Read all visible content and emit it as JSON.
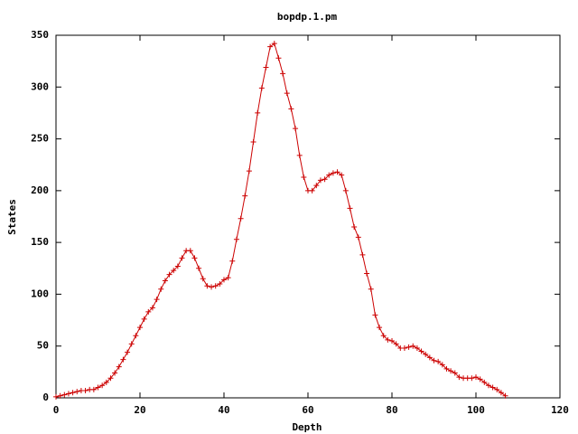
{
  "chart_data": {
    "type": "line",
    "title": "bopdp.1.pm",
    "x_label": "Depth",
    "y_label": "States",
    "x": [
      0,
      1,
      2,
      3,
      4,
      5,
      6,
      7,
      8,
      9,
      10,
      11,
      12,
      13,
      14,
      15,
      16,
      17,
      18,
      19,
      20,
      21,
      22,
      23,
      24,
      25,
      26,
      27,
      28,
      29,
      30,
      31,
      32,
      33,
      34,
      35,
      36,
      37,
      38,
      39,
      40,
      41,
      42,
      43,
      44,
      45,
      46,
      47,
      48,
      49,
      50,
      51,
      52,
      53,
      54,
      55,
      56,
      57,
      58,
      59,
      60,
      61,
      62,
      63,
      64,
      65,
      66,
      67,
      68,
      69,
      70,
      71,
      72,
      73,
      74,
      75,
      76,
      77,
      78,
      79,
      80,
      81,
      82,
      83,
      84,
      85,
      86,
      87,
      88,
      89,
      90,
      91,
      92,
      93,
      94,
      95,
      96,
      97,
      98,
      99,
      100,
      101,
      102,
      103,
      104,
      105,
      106,
      107
    ],
    "series": [
      {
        "color": "#cc0000",
        "values": [
          1,
          2,
          3,
          4,
          5,
          6,
          7,
          7,
          8,
          8,
          10,
          12,
          15,
          19,
          24,
          30,
          37,
          44,
          52,
          60,
          68,
          76,
          83,
          87,
          95,
          105,
          113,
          119,
          123,
          127,
          135,
          142,
          142,
          135,
          125,
          115,
          108,
          107,
          108,
          110,
          114,
          116,
          132,
          153,
          173,
          195,
          219,
          247,
          275,
          299,
          319,
          339,
          342,
          328,
          313,
          294,
          279,
          260,
          234,
          213,
          200,
          200,
          205,
          210,
          211,
          215,
          217,
          218,
          215,
          200,
          183,
          165,
          155,
          138,
          120,
          105,
          80,
          68,
          60,
          56,
          55,
          52,
          48,
          48,
          49,
          50,
          48,
          45,
          42,
          39,
          36,
          35,
          32,
          28,
          26,
          24,
          20,
          19,
          19,
          19,
          20,
          18,
          15,
          12,
          10,
          8,
          5,
          2
        ]
      }
    ],
    "xlim": [
      0,
      120
    ],
    "xticks": [
      0,
      20,
      40,
      60,
      80,
      100,
      120
    ],
    "ylim": [
      0,
      350
    ],
    "yticks": [
      0,
      50,
      100,
      150,
      200,
      250,
      300,
      350
    ]
  }
}
